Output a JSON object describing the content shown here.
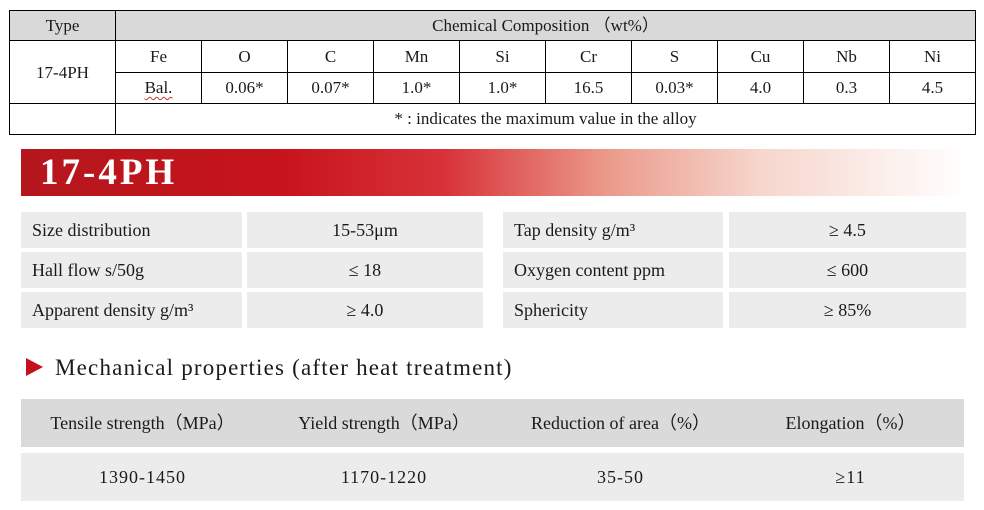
{
  "composition": {
    "type_header": "Type",
    "title": "Chemical Composition （wt%）",
    "elements": [
      "Fe",
      "O",
      "C",
      "Mn",
      "Si",
      "Cr",
      "S",
      "Cu",
      "Nb",
      "Ni"
    ],
    "type_name": "17-4PH",
    "values": [
      "Bal.",
      "0.06*",
      "0.07*",
      "1.0*",
      "1.0*",
      "16.5",
      "0.03*",
      "4.0",
      "0.3",
      "4.5"
    ],
    "note": "* : indicates the maximum value in the alloy"
  },
  "banner": {
    "title": "17-4PH",
    "colors": {
      "start": "#b4161d",
      "end": "#ffffff"
    }
  },
  "properties": {
    "left": [
      {
        "label": "Size distribution",
        "value": "15-53μm"
      },
      {
        "label": "Hall flow s/50g",
        "value": "≤ 18"
      },
      {
        "label": "Apparent density g/m³",
        "value": "≥ 4.0"
      }
    ],
    "right": [
      {
        "label": "Tap density g/m³",
        "value": "≥ 4.5"
      },
      {
        "label": "Oxygen content ppm",
        "value": "≤ 600"
      },
      {
        "label": "Sphericity",
        "value": "≥ 85%"
      }
    ]
  },
  "mechanical": {
    "title": "Mechanical properties (after heat treatment)",
    "arrow_icon": "triangle-right-icon",
    "accent_color": "#c1121b",
    "headers": [
      "Tensile strength（MPa）",
      "Yield strength（MPa）",
      "Reduction of area（%）",
      "Elongation（%）"
    ],
    "values": [
      "1390-1450",
      "1170-1220",
      "35-50",
      "≥11"
    ]
  }
}
